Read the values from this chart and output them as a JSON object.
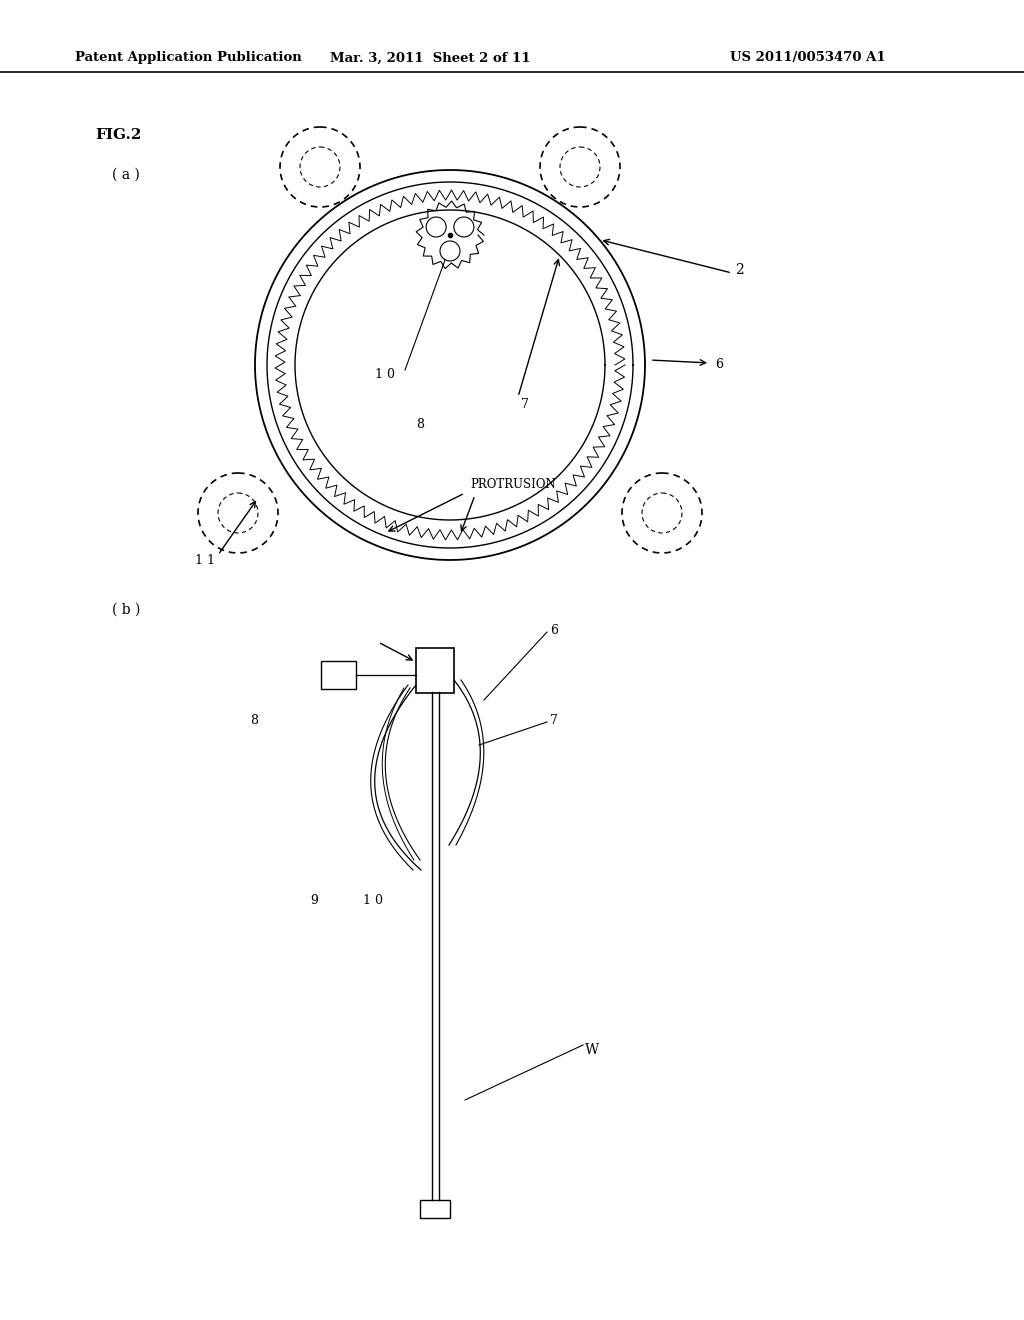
{
  "bg_color": "#ffffff",
  "header_left": "Patent Application Publication",
  "header_mid": "Mar. 3, 2011  Sheet 2 of 11",
  "header_right": "US 2011/0053470 A1",
  "fig_label": "FIG.2",
  "sub_a": "( a )",
  "sub_b": "( b )",
  "label_2": "2",
  "label_6a": "6",
  "label_6b": "6",
  "label_7a": "7",
  "label_7b": "7",
  "label_8a": "8",
  "label_8b": "8",
  "label_9": "9",
  "label_10a": "1 0",
  "label_10b": "1 0",
  "label_11": "1 1",
  "label_protrusion": "PROTRUSION",
  "label_W": "W"
}
